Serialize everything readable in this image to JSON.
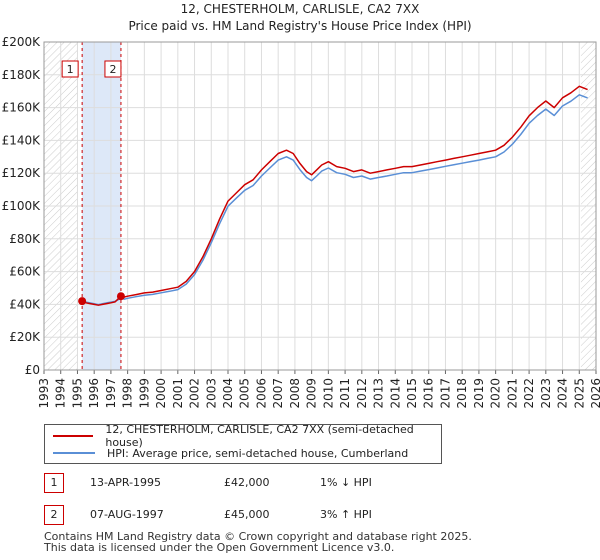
{
  "chart_data": {
    "type": "line",
    "title": "12, CHESTERHOLM, CARLISLE, CA2 7XX",
    "subtitle": "Price paid vs. HM Land Registry's House Price Index (HPI)",
    "xlabel": "",
    "ylabel": "",
    "xlim": [
      1993,
      2026
    ],
    "ylim": [
      0,
      200000
    ],
    "grid": true,
    "x_ticks": [
      "1993",
      "1994",
      "1995",
      "1996",
      "1997",
      "1998",
      "1999",
      "2000",
      "2001",
      "2002",
      "2003",
      "2004",
      "2005",
      "2006",
      "2007",
      "2008",
      "2009",
      "2010",
      "2011",
      "2012",
      "2013",
      "2014",
      "2015",
      "2016",
      "2017",
      "2018",
      "2019",
      "2020",
      "2021",
      "2022",
      "2023",
      "2024",
      "2025",
      "2026"
    ],
    "y_ticks": [
      "£0",
      "£20K",
      "£40K",
      "£60K",
      "£80K",
      "£100K",
      "£120K",
      "£140K",
      "£160K",
      "£180K",
      "£200K"
    ],
    "series": [
      {
        "name": "12, CHESTERHOLM, CARLISLE, CA2 7XX (semi-detached house)",
        "color": "#cc0000",
        "x": [
          1995.28,
          1995.5,
          1995.75,
          1996.0,
          1996.25,
          1996.5,
          1996.75,
          1997.0,
          1997.25,
          1997.6,
          1997.8,
          1998.0,
          1998.5,
          1999.0,
          1999.5,
          2000.0,
          2000.5,
          2001.0,
          2001.5,
          2002.0,
          2002.5,
          2003.0,
          2003.5,
          2004.0,
          2004.5,
          2005.0,
          2005.5,
          2006.0,
          2006.5,
          2007.0,
          2007.5,
          2007.9,
          2008.3,
          2008.7,
          2009.0,
          2009.3,
          2009.6,
          2010.0,
          2010.5,
          2011.0,
          2011.5,
          2012.0,
          2012.5,
          2013.0,
          2013.5,
          2014.0,
          2014.5,
          2015.0,
          2015.5,
          2016.0,
          2016.5,
          2017.0,
          2017.5,
          2018.0,
          2018.5,
          2019.0,
          2019.5,
          2020.0,
          2020.5,
          2021.0,
          2021.5,
          2022.0,
          2022.5,
          2023.0,
          2023.5,
          2024.0,
          2024.5,
          2025.0,
          2025.5
        ],
        "values": [
          42000,
          41000,
          40500,
          40000,
          39500,
          40000,
          40500,
          41000,
          41500,
          45000,
          44500,
          45000,
          46000,
          47000,
          47500,
          48500,
          49500,
          50500,
          54000,
          60000,
          69000,
          80000,
          92000,
          103000,
          108000,
          113000,
          116000,
          122000,
          127000,
          132000,
          134000,
          132000,
          126000,
          121000,
          119000,
          122000,
          125000,
          127000,
          124000,
          123000,
          121000,
          122000,
          120000,
          121000,
          122000,
          123000,
          124000,
          124000,
          125000,
          126000,
          127000,
          128000,
          129000,
          130000,
          131000,
          132000,
          133000,
          134000,
          137000,
          142000,
          148000,
          155000,
          160000,
          164000,
          160000,
          166000,
          169000,
          173000,
          171000
        ]
      },
      {
        "name": "HPI: Average price, semi-detached house, Cumberland",
        "color": "#5a8fd6",
        "x": [
          1995.28,
          1995.5,
          1995.75,
          1996.0,
          1996.25,
          1996.5,
          1996.75,
          1997.0,
          1997.25,
          1997.6,
          1997.8,
          1998.0,
          1998.5,
          1999.0,
          1999.5,
          2000.0,
          2000.5,
          2001.0,
          2001.5,
          2002.0,
          2002.5,
          2003.0,
          2003.5,
          2004.0,
          2004.5,
          2005.0,
          2005.5,
          2006.0,
          2006.5,
          2007.0,
          2007.5,
          2007.9,
          2008.3,
          2008.7,
          2009.0,
          2009.3,
          2009.6,
          2010.0,
          2010.5,
          2011.0,
          2011.5,
          2012.0,
          2012.5,
          2013.0,
          2013.5,
          2014.0,
          2014.5,
          2015.0,
          2015.5,
          2016.0,
          2016.5,
          2017.0,
          2017.5,
          2018.0,
          2018.5,
          2019.0,
          2019.5,
          2020.0,
          2020.5,
          2021.0,
          2021.5,
          2022.0,
          2022.5,
          2023.0,
          2023.5,
          2024.0,
          2024.5,
          2025.0,
          2025.5
        ],
        "values": [
          42400,
          41400,
          40900,
          40400,
          39900,
          40400,
          40900,
          41400,
          41900,
          43700,
          43200,
          43700,
          44700,
          45600,
          46100,
          47100,
          48000,
          49000,
          52400,
          58200,
          66900,
          77600,
          89200,
          99900,
          104800,
          109600,
          112500,
          118300,
          123200,
          128000,
          130000,
          128000,
          122200,
          117400,
          115400,
          118300,
          121300,
          123200,
          120300,
          119300,
          117400,
          118300,
          116400,
          117400,
          118300,
          119300,
          120300,
          120300,
          121300,
          122200,
          123200,
          124200,
          125100,
          126100,
          127100,
          128000,
          129000,
          130000,
          132900,
          137700,
          143600,
          150400,
          155200,
          159100,
          155200,
          161000,
          163900,
          167800,
          165900
        ]
      }
    ],
    "sales": [
      {
        "label": "1",
        "x": 1995.28,
        "value": 42000
      },
      {
        "label": "2",
        "x": 1997.6,
        "value": 45000
      }
    ],
    "vlines": [
      1995.28,
      1997.6
    ]
  },
  "legend": {
    "property": "12, CHESTERHOLM, CARLISLE, CA2 7XX (semi-detached house)",
    "hpi": "HPI: Average price, semi-detached house, Cumberland"
  },
  "sales_table": [
    {
      "num": "1",
      "date": "13-APR-1995",
      "price": "£42,000",
      "hpi": "1% ↓ HPI"
    },
    {
      "num": "2",
      "date": "07-AUG-1997",
      "price": "£45,000",
      "hpi": "3% ↑ HPI"
    }
  ],
  "footer": {
    "line1": "Contains HM Land Registry data © Crown copyright and database right 2025.",
    "line2": "This data is licensed under the Open Government Licence v3.0."
  }
}
